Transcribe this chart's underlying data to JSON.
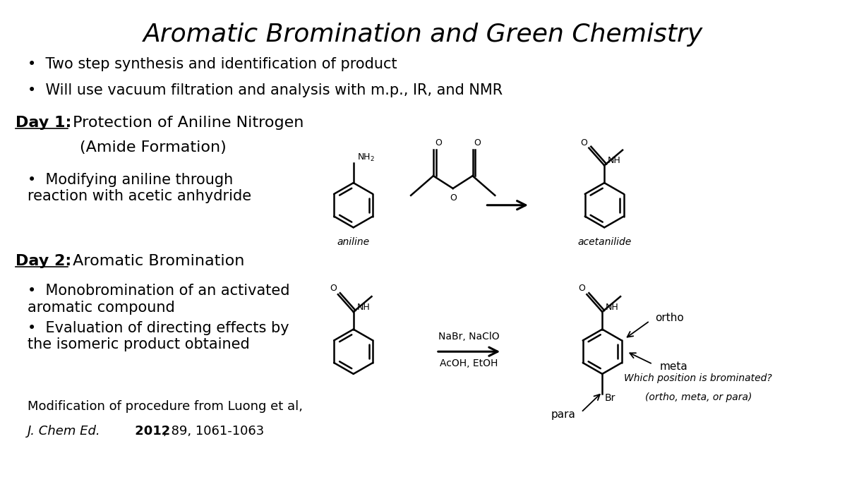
{
  "title": "Aromatic Bromination and Green Chemistry",
  "bullet1": "Two step synthesis and identification of product",
  "bullet2": "Will use vacuum filtration and analysis with m.p., IR, and NMR",
  "day1_label": "Day 1:",
  "day1_rest": " Protection of Aniline Nitrogen",
  "day1_sub": "(Amide Formation)",
  "day1_bullet": "Modifying aniline through\nreaction with acetic anhydride",
  "day2_label": "Day 2:",
  "day2_rest": " Aromatic Bromination",
  "day2_bullet1": "Monobromination of an activated\naromatic compound",
  "day2_bullet2": "Evaluation of directing effects by\nthe isomeric product obtained",
  "ref_line1": "Modification of procedure from Luong et al,",
  "ref_italic": "J. Chem Ed.",
  "ref_bold": "2012",
  "ref_rest": ", 89, 1061-1063",
  "reagent1": "NaBr, NaClO",
  "reagent2": "AcOH, EtOH",
  "aniline_label": "aniline",
  "acetanilide_label": "acetanilide",
  "ortho_label": "ortho",
  "meta_label": "meta",
  "para_label": "para",
  "question_line1": "Which position is brominated?",
  "question_line2": "(ortho, meta, or para)",
  "bg_color": "#ffffff",
  "text_color": "#000000",
  "title_fontsize": 26,
  "body_fontsize": 15,
  "small_fontsize": 13
}
